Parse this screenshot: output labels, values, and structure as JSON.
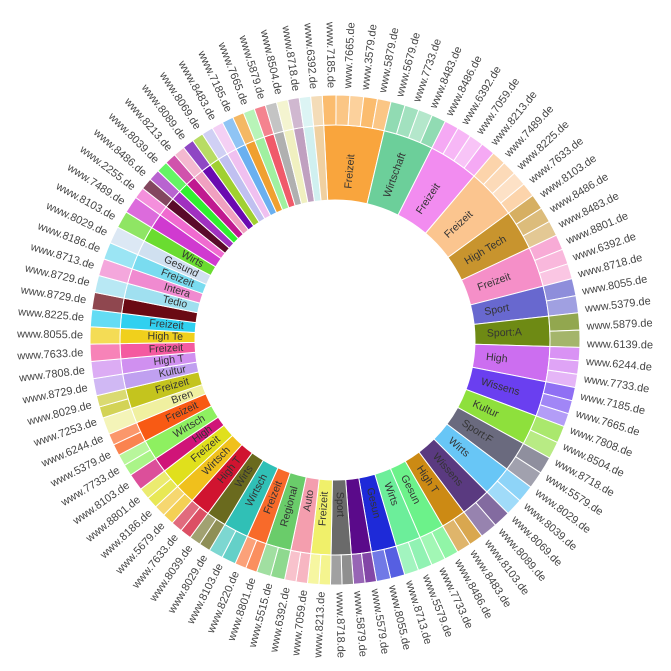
{
  "chart_data": {
    "type": "sunburst",
    "title": "",
    "inner": [
      {
        "label": "Freizeit",
        "value": 12,
        "color": "#f9a53d"
      },
      {
        "label": "Wirtschaft",
        "value": 10,
        "color": "#6ccf9a"
      },
      {
        "label": "Freizeit",
        "value": 10,
        "color": "#f28cf0"
      },
      {
        "label": "Freizeit",
        "value": 10,
        "color": "#fbc58f"
      },
      {
        "label": "High Tech",
        "value": 8,
        "color": "#c8942e"
      },
      {
        "label": "Freizeit",
        "value": 8,
        "color": "#f58fc8"
      },
      {
        "label": "Sport",
        "value": 6,
        "color": "#6868cf"
      },
      {
        "label": "Sport:A",
        "value": 6,
        "color": "#6e8a14"
      },
      {
        "label": "High",
        "value": 7,
        "color": "#cc6ef0"
      },
      {
        "label": "Wissens",
        "value": 7,
        "color": "#6a3ff0"
      },
      {
        "label": "Kultur",
        "value": 6,
        "color": "#8ee03c"
      },
      {
        "label": "Sport:F",
        "value": 6,
        "color": "#6a6a7e"
      },
      {
        "label": "Wirts",
        "value": 6,
        "color": "#68c6f6"
      },
      {
        "label": "Wissens",
        "value": 6,
        "color": "#5a3a80"
      },
      {
        "label": "High T",
        "value": 5,
        "color": "#cc8a14"
      },
      {
        "label": "Gesun",
        "value": 5,
        "color": "#6cf28a"
      },
      {
        "label": "Wirts",
        "value": 5,
        "color": "#6cee9a"
      },
      {
        "label": "Gesun",
        "value": 5,
        "color": "#1e2ad8"
      },
      {
        "label": "",
        "value": 4,
        "color": "#5a0a8a"
      },
      {
        "label": "Sport",
        "value": 4,
        "color": "#6a6a6a"
      },
      {
        "label": "Freizeit",
        "value": 4,
        "color": "#f0f06a"
      },
      {
        "label": "Auto",
        "value": 4,
        "color": "#f49eae"
      },
      {
        "label": "Regional",
        "value": 5,
        "color": "#6acc6a"
      },
      {
        "label": "Freizeit",
        "value": 4,
        "color": "#f86a2a"
      },
      {
        "label": "Wirtsch",
        "value": 5,
        "color": "#30c0b6"
      },
      {
        "label": "Wirts",
        "value": 4,
        "color": "#6a6a1e"
      },
      {
        "label": "High T",
        "value": 4,
        "color": "#d01430"
      },
      {
        "label": "Wirtsch",
        "value": 4,
        "color": "#f0c01c"
      },
      {
        "label": "Freizeit",
        "value": 4,
        "color": "#e0e01c"
      },
      {
        "label": "High",
        "value": 3,
        "color": "#d01478"
      },
      {
        "label": "Wirtsch",
        "value": 4,
        "color": "#8ef060"
      },
      {
        "label": "Freizeit",
        "value": 4,
        "color": "#f85a14"
      },
      {
        "label": "Bren",
        "value": 3,
        "color": "#f0f0a0"
      },
      {
        "label": "Freizeit",
        "value": 4,
        "color": "#c4c41e"
      },
      {
        "label": "Kultur",
        "value": 3,
        "color": "#c0a0f0"
      },
      {
        "label": "High T",
        "value": 3,
        "color": "#d090f0"
      },
      {
        "label": "Freizeit",
        "value": 3,
        "color": "#f45aa0"
      },
      {
        "label": "High Te",
        "value": 3,
        "color": "#f0d01c"
      },
      {
        "label": "Freizeit",
        "value": 3,
        "color": "#30d0f0"
      },
      {
        "label": "",
        "value": 3,
        "color": "#6a0a14"
      },
      {
        "label": "Tedio",
        "value": 3,
        "color": "#a0e0f0"
      },
      {
        "label": "Intera",
        "value": 3,
        "color": "#f08ad0"
      },
      {
        "label": "Freizeit",
        "value": 3,
        "color": "#7adcf0"
      },
      {
        "label": "Gesund",
        "value": 3,
        "color": "#d0e0f0"
      },
      {
        "label": "Wirts",
        "value": 3,
        "color": "#6adc30"
      },
      {
        "label": "",
        "value": 3,
        "color": "#d03ad0"
      },
      {
        "label": "",
        "value": 2,
        "color": "#f06ad0"
      },
      {
        "label": "",
        "value": 2,
        "color": "#5a0a2a"
      },
      {
        "label": "",
        "value": 2,
        "color": "#a030c0"
      },
      {
        "label": "",
        "value": 2,
        "color": "#30f030"
      },
      {
        "label": "",
        "value": 2,
        "color": "#c01a90"
      },
      {
        "label": "",
        "value": 2,
        "color": "#f0a0c0"
      },
      {
        "label": "",
        "value": 2,
        "color": "#6a0ab0"
      },
      {
        "label": "",
        "value": 2,
        "color": "#a0d030"
      },
      {
        "label": "",
        "value": 2,
        "color": "#c0c0f0"
      },
      {
        "label": "",
        "value": 2,
        "color": "#f0c0f0"
      },
      {
        "label": "",
        "value": 2,
        "color": "#6ab0f0"
      },
      {
        "label": "",
        "value": 2,
        "color": "#f0a030"
      },
      {
        "label": "",
        "value": 2,
        "color": "#a0f0a0"
      },
      {
        "label": "",
        "value": 2,
        "color": "#f05a6a"
      },
      {
        "label": "",
        "value": 2,
        "color": "#b0b0b0"
      },
      {
        "label": "",
        "value": 2,
        "color": "#f0f0c0"
      },
      {
        "label": "",
        "value": 2,
        "color": "#c0a0c0"
      },
      {
        "label": "",
        "value": 2,
        "color": "#d0f0f0"
      },
      {
        "label": "",
        "value": 2,
        "color": "#f0d0a0"
      }
    ],
    "outer_labels": [
      "www.7185.de",
      "www.7665.de",
      "www.3579.de",
      "www.5879.de",
      "www.5679.de",
      "www.7733.de",
      "www.8483.de",
      "www.8486.de",
      "www.6392.de",
      "www.7059.de",
      "www.8213.de",
      "www.7489.de",
      "www.8225.de",
      "www.7633.de",
      "www.8103.de",
      "www.8486.de",
      "www.8483.de",
      "www.8801.de",
      "www.6392.de",
      "www.8718.de",
      "www.8055.de",
      "www.5379.de",
      "www.5879.de",
      "www.6139.de",
      "www.6244.de",
      "www.7733.de",
      "www.7185.de",
      "www.7665.de",
      "www.7808.de",
      "www.8504.de",
      "www.8718.de",
      "www.5579.de",
      "www.8029.de",
      "www.8039.de",
      "www.8069.de",
      "www.8089.de",
      "www.8103.de",
      "www.8483.de",
      "www.8486.de",
      "www.7733.de",
      "www.5579.de",
      "www.8713.de",
      "www.8055.de",
      "www.5579.de",
      "www.5879.de",
      "www.8718.de",
      "www.8213.de",
      "www.7059.de",
      "www.6392.de",
      "www.5515.de",
      "www.8801.de",
      "www.8220.de",
      "www.8103.de",
      "www.8029.de",
      "www.8039.de",
      "www.7633.de",
      "www.5679.de",
      "www.8186.de",
      "www.8801.de",
      "www.8103.de",
      "www.7733.de",
      "www.5379.de",
      "www.6244.de",
      "www.7253.de",
      "www.8029.de",
      "www.8729.de",
      "www.7808.de",
      "www.7633.de",
      "www.8055.de",
      "www.8225.de",
      "www.8729.de",
      "www.8729.de",
      "www.8713.de",
      "www.8186.de",
      "www.8029.de",
      "www.8103.de",
      "www.7489.de",
      "www.2255.de",
      "www.8486.de",
      "www.8039.de",
      "www.8213.de",
      "www.8089.de",
      "www.8069.de",
      "www.8483.de",
      "www.7185.de",
      "www.7665.de",
      "www.5879.de",
      "www.8504.de",
      "www.8718.de",
      "www.6392.de"
    ]
  }
}
